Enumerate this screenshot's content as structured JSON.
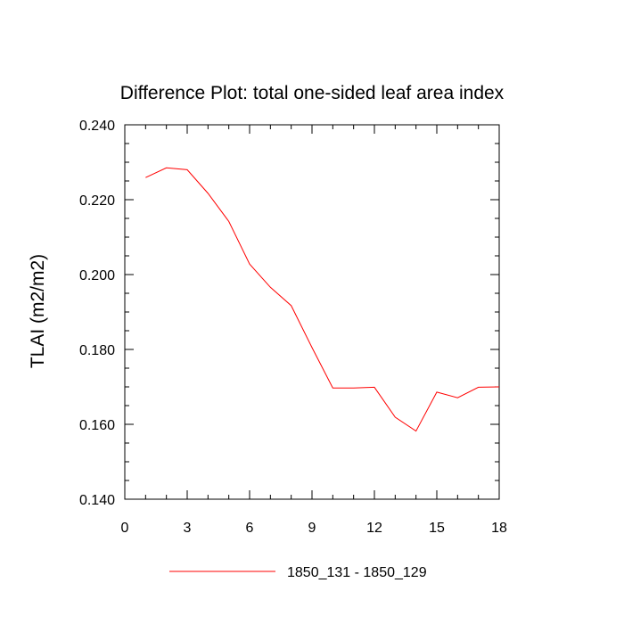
{
  "chart_data": {
    "type": "line",
    "title": "Difference Plot: total one-sided leaf area index",
    "xlabel": "",
    "ylabel": "TLAI  (m2/m2)",
    "xlim": [
      0,
      18
    ],
    "ylim": [
      0.14,
      0.24
    ],
    "x_ticks": [
      0,
      3,
      6,
      9,
      12,
      15,
      18
    ],
    "y_ticks": [
      0.14,
      0.16,
      0.18,
      0.2,
      0.22,
      0.24
    ],
    "x_tick_labels": [
      "0",
      "3",
      "6",
      "9",
      "12",
      "15",
      "18"
    ],
    "y_tick_labels": [
      "0.140",
      "0.160",
      "0.180",
      "0.200",
      "0.220",
      "0.240"
    ],
    "grid": false,
    "legend_position": "bottom",
    "series": [
      {
        "name": "1850_131 - 1850_129",
        "color": "#ff0000",
        "x": [
          1,
          2,
          3,
          4,
          5,
          6,
          7,
          8,
          9,
          10,
          11,
          12,
          13,
          14,
          15,
          16,
          17,
          18
        ],
        "y": [
          0.2259,
          0.2285,
          0.228,
          0.2217,
          0.2142,
          0.2028,
          0.1966,
          0.1917,
          0.1805,
          0.1697,
          0.1697,
          0.1699,
          0.1619,
          0.1582,
          0.1686,
          0.1671,
          0.1699,
          0.17
        ]
      }
    ]
  }
}
